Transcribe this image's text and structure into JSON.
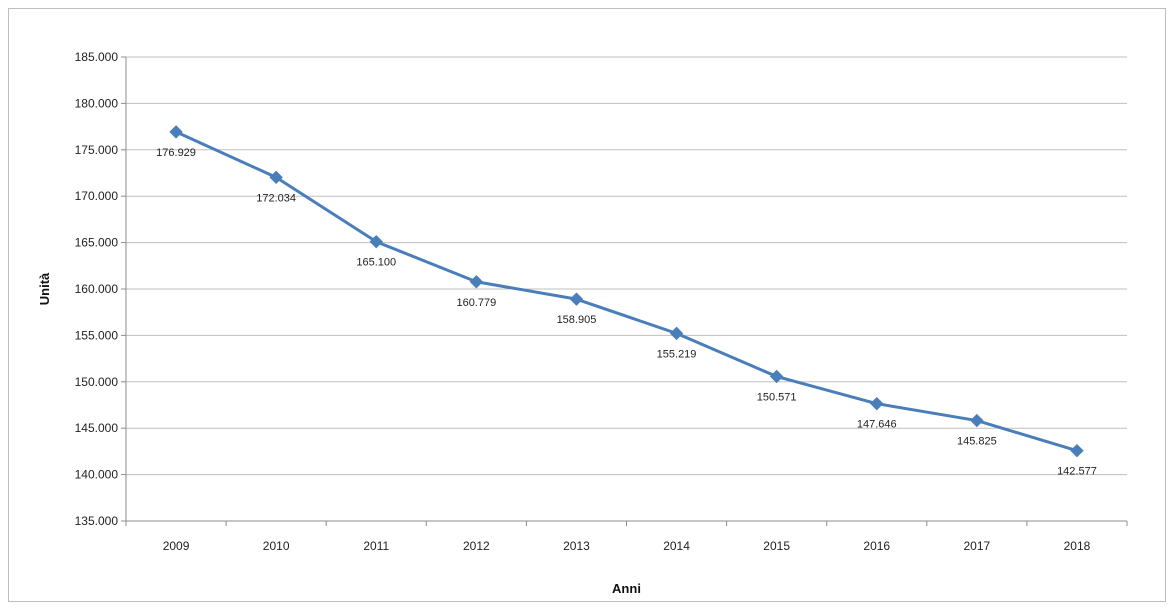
{
  "chart_data": {
    "type": "line",
    "title": "",
    "xlabel": "Anni",
    "ylabel": "Unità",
    "categories": [
      "2009",
      "2010",
      "2011",
      "2012",
      "2013",
      "2014",
      "2015",
      "2016",
      "2017",
      "2018"
    ],
    "series": [
      {
        "values": [
          176929,
          172034,
          165100,
          160779,
          158905,
          155219,
          150571,
          147646,
          145825,
          142577
        ],
        "data_labels": [
          "176.929",
          "172.034",
          "165.100",
          "160.779",
          "158.905",
          "155.219",
          "150.571",
          "147.646",
          "145.825",
          "142.577"
        ]
      }
    ],
    "yticks": [
      135000,
      140000,
      145000,
      150000,
      155000,
      160000,
      165000,
      170000,
      175000,
      180000,
      185000
    ],
    "ytick_labels": [
      "135.000",
      "140.000",
      "145.000",
      "150.000",
      "155.000",
      "160.000",
      "165.000",
      "170.000",
      "175.000",
      "180.000",
      "185.000"
    ],
    "ylim": [
      135000,
      185000
    ],
    "grid": true,
    "legend": "none",
    "marker": "diamond",
    "line_color": "#4a7ebb",
    "grid_color": "#bfbfbf",
    "axis_color": "#8c8c8c"
  }
}
